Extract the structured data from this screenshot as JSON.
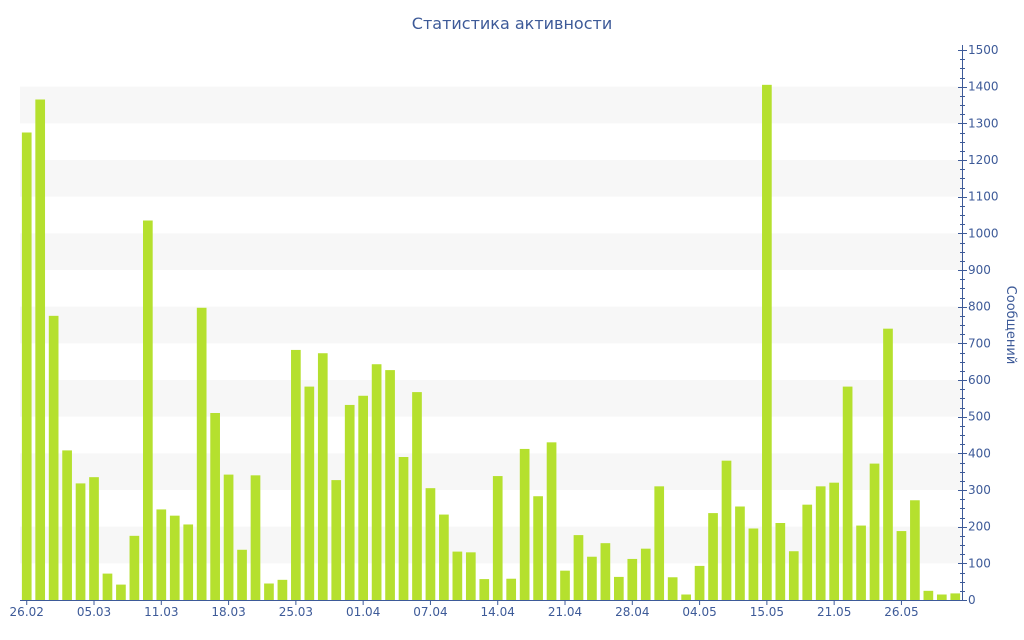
{
  "chart_data": {
    "type": "bar",
    "title": "Статистика активности",
    "ylabel": "Сообщений",
    "xlabel": "",
    "y_axis_side": "right",
    "ylim": [
      0,
      1500
    ],
    "y_ticks": [
      0,
      100,
      200,
      300,
      400,
      500,
      600,
      700,
      800,
      900,
      1000,
      1100,
      1200,
      1300,
      1400,
      1500
    ],
    "grid": "alternating horizontal bands",
    "x_tick_labels": [
      {
        "label": "26.02",
        "index": 0
      },
      {
        "label": "05.03",
        "index": 5
      },
      {
        "label": "11.03",
        "index": 10
      },
      {
        "label": "18.03",
        "index": 15
      },
      {
        "label": "25.03",
        "index": 20
      },
      {
        "label": "01.04",
        "index": 25
      },
      {
        "label": "07.04",
        "index": 30
      },
      {
        "label": "14.04",
        "index": 35
      },
      {
        "label": "21.04",
        "index": 40
      },
      {
        "label": "28.04",
        "index": 45
      },
      {
        "label": "04.05",
        "index": 50
      },
      {
        "label": "15.05",
        "index": 55
      },
      {
        "label": "21.05",
        "index": 60
      },
      {
        "label": "26.05",
        "index": 65
      }
    ],
    "values": [
      1275,
      1365,
      775,
      408,
      318,
      335,
      72,
      42,
      175,
      1035,
      247,
      230,
      206,
      797,
      510,
      342,
      137,
      340,
      45,
      55,
      682,
      582,
      673,
      327,
      532,
      557,
      643,
      627,
      390,
      567,
      305,
      233,
      132,
      130,
      57,
      338,
      58,
      412,
      283,
      430,
      80,
      177,
      118,
      155,
      63,
      112,
      140,
      310,
      62,
      15,
      93,
      237,
      380,
      255,
      195,
      1405,
      210,
      133,
      260,
      310,
      320,
      582,
      203,
      372,
      740,
      188,
      272,
      25,
      15,
      18
    ],
    "colors": {
      "bar": "#b5e02e",
      "axis": "#3d5a98",
      "band": "#f7f7f7"
    }
  }
}
